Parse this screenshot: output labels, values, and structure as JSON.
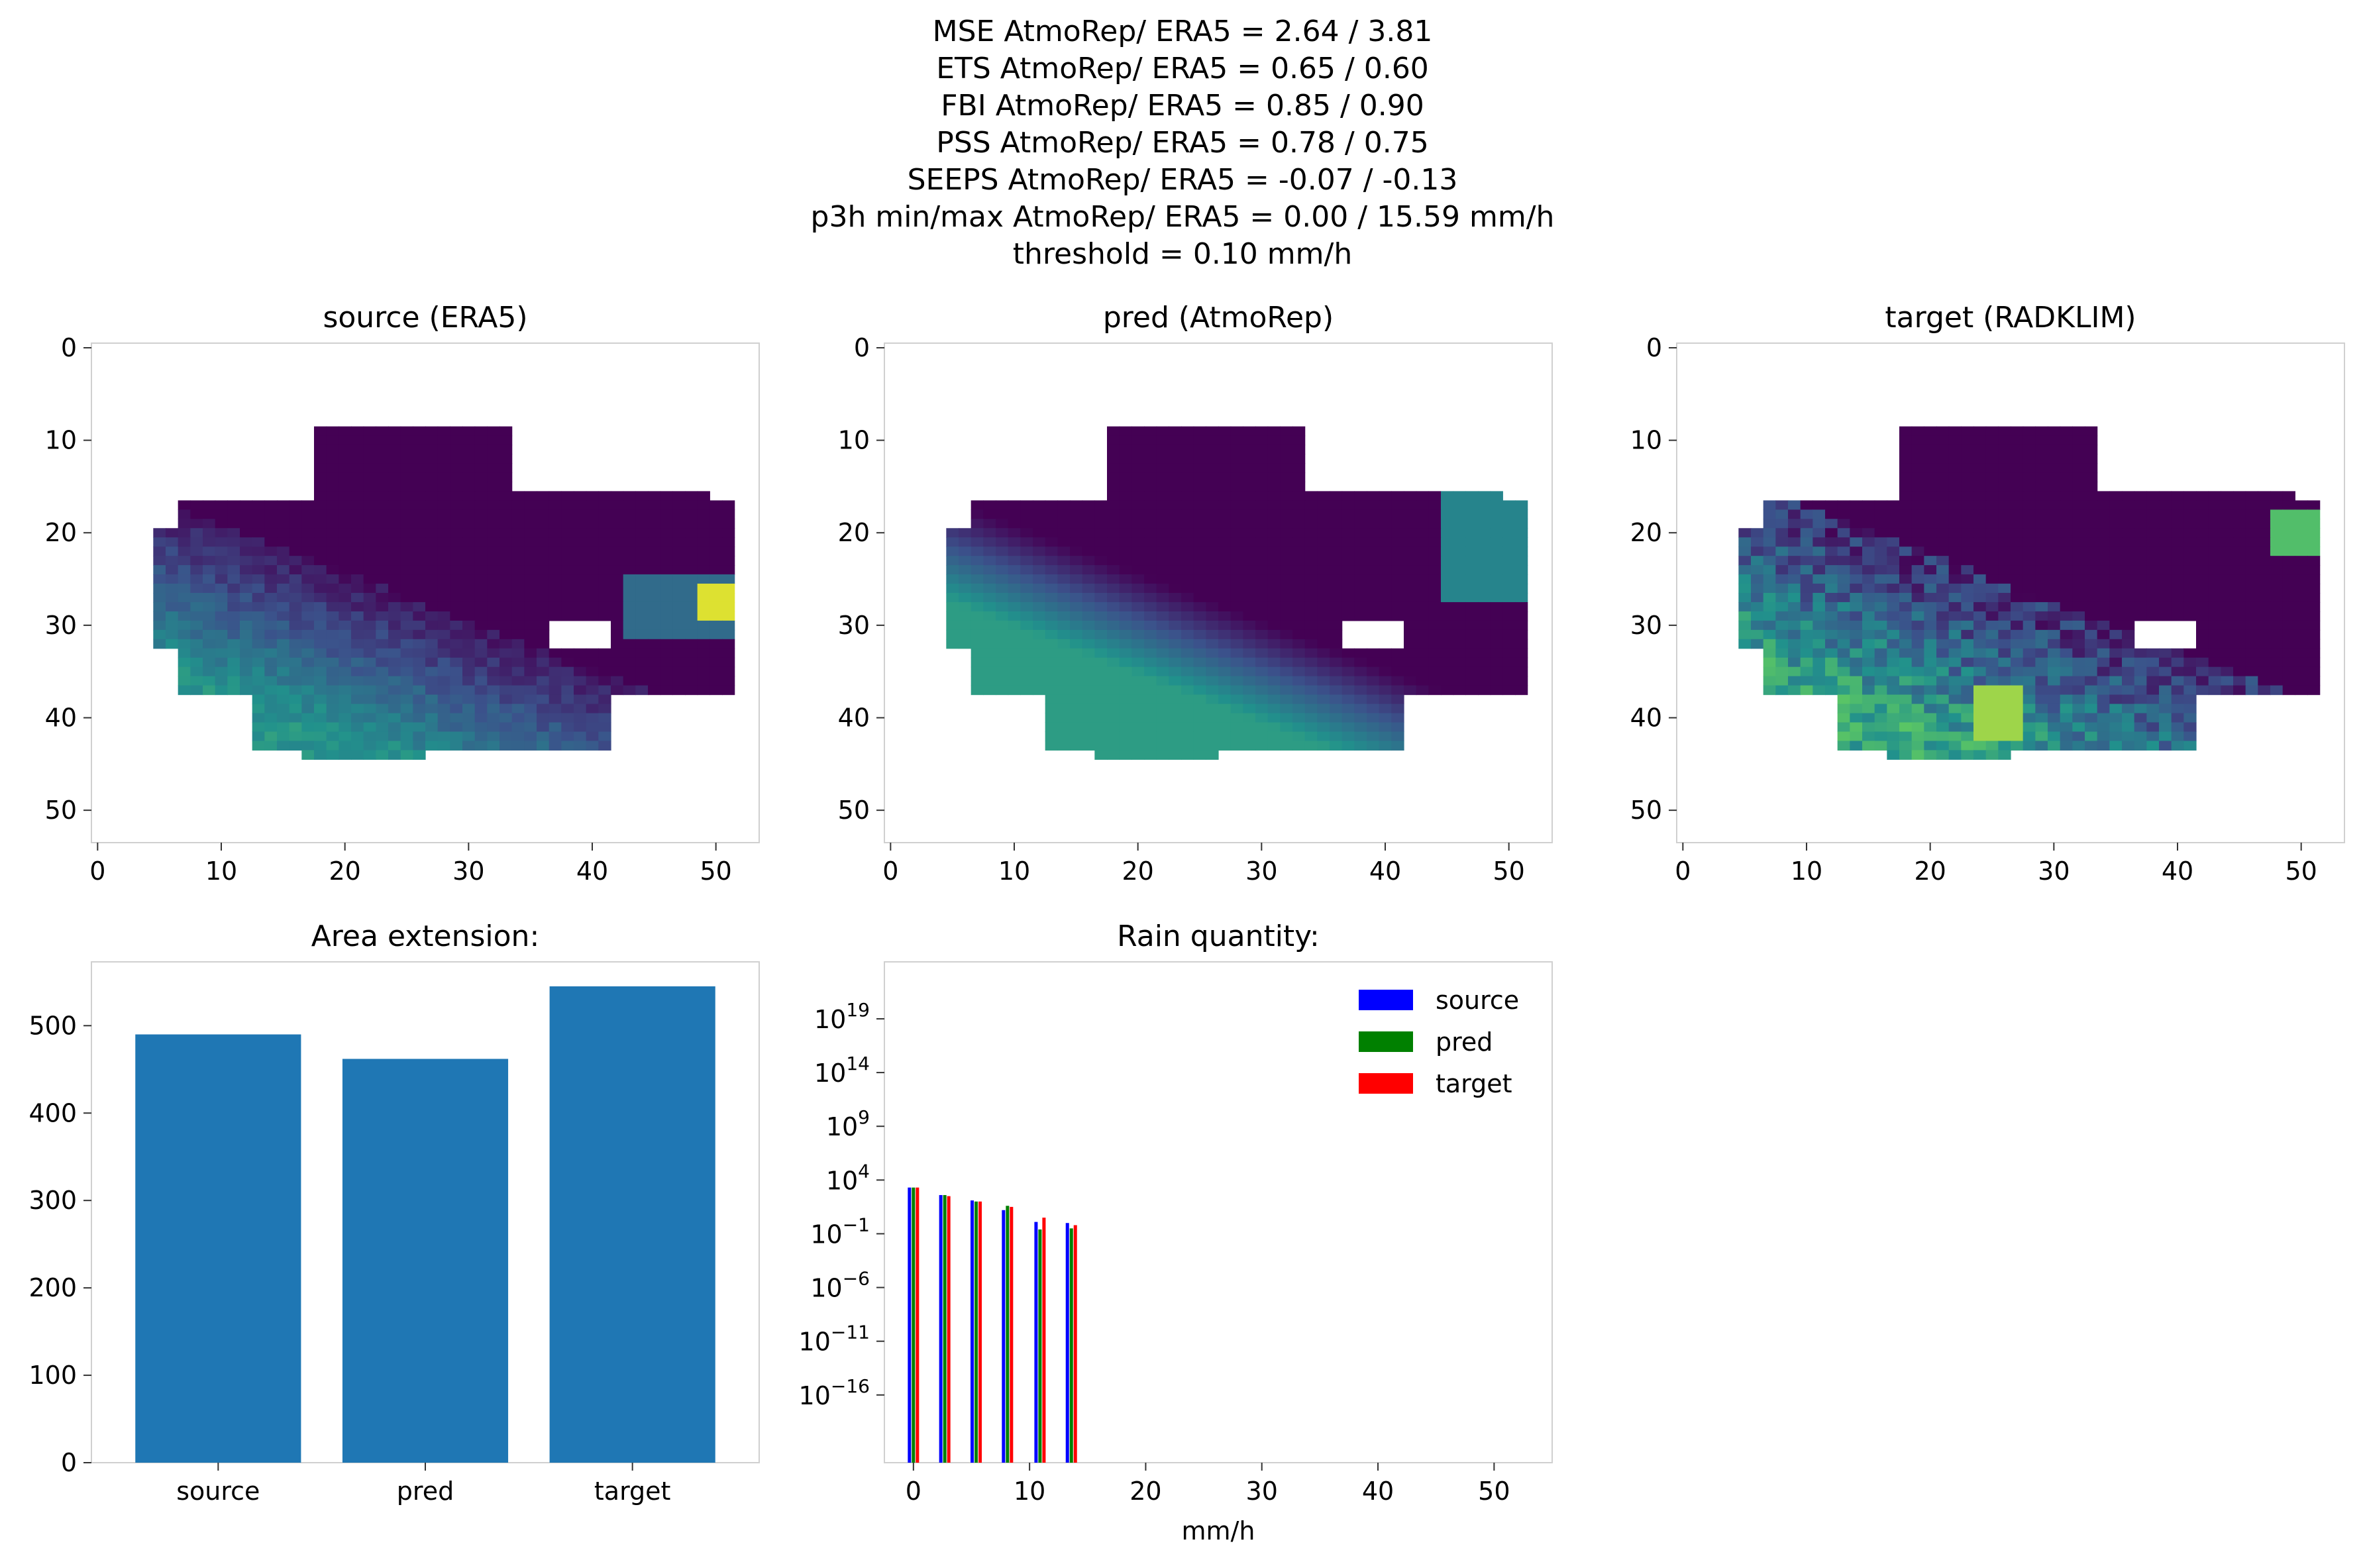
{
  "suptitle": [
    "MSE AtmoRep/ ERA5 = 2.64 / 3.81",
    "ETS AtmoRep/ ERA5 = 0.65 / 0.60",
    "FBI AtmoRep/ ERA5 = 0.85 / 0.90",
    "PSS AtmoRep/ ERA5 = 0.78 / 0.75",
    "SEEPS AtmoRep/ ERA5 = -0.07 / -0.13",
    "p3h min/max AtmoRep/ ERA5 = 0.00 / 15.59 mm/h",
    "threshold = 0.10 mm/h"
  ],
  "colors": {
    "bar": "#1f77b4",
    "source": "#0000ff",
    "pred": "#008000",
    "target": "#ff0000",
    "spine": "#d0d0d0",
    "viridis": [
      "#440154",
      "#3b528b",
      "#21918c",
      "#5ec962",
      "#fde725"
    ]
  },
  "chart_data": [
    {
      "type": "heatmap",
      "title": "source (ERA5)",
      "xticks": [
        "0",
        "10",
        "20",
        "30",
        "40",
        "50"
      ],
      "yticks": [
        "0",
        "10",
        "20",
        "30",
        "40",
        "50"
      ],
      "xlim": [
        -0.5,
        53.5
      ],
      "ylim": [
        53.5,
        -0.5
      ],
      "description_scale": "viridis"
    },
    {
      "type": "heatmap",
      "title": "pred (AtmoRep)",
      "xticks": [
        "0",
        "10",
        "20",
        "30",
        "40",
        "50"
      ],
      "yticks": [
        "0",
        "10",
        "20",
        "30",
        "40",
        "50"
      ],
      "xlim": [
        -0.5,
        53.5
      ],
      "ylim": [
        53.5,
        -0.5
      ],
      "description_scale": "viridis"
    },
    {
      "type": "heatmap",
      "title": "target (RADKLIM)",
      "xticks": [
        "0",
        "10",
        "20",
        "30",
        "40",
        "50"
      ],
      "yticks": [
        "0",
        "10",
        "20",
        "30",
        "40",
        "50"
      ],
      "xlim": [
        -0.5,
        53.5
      ],
      "ylim": [
        53.5,
        -0.5
      ],
      "description_scale": "viridis"
    },
    {
      "type": "bar",
      "title": "Area extension:",
      "categories": [
        "source",
        "pred",
        "target"
      ],
      "values": [
        490,
        462,
        545
      ],
      "yticks": [
        0,
        100,
        200,
        300,
        400,
        500
      ],
      "ylim": [
        0,
        573
      ]
    },
    {
      "type": "bar",
      "title": "Rain quantity:",
      "xlabel": "mm/h",
      "xticks": [
        0,
        10,
        20,
        30,
        40,
        50
      ],
      "xlim": [
        -2.5,
        55
      ],
      "ylog": true,
      "ylim_exp": [
        -22.3,
        24.3
      ],
      "yticks_exp": [
        19,
        14,
        9,
        4,
        -1,
        -6,
        -11,
        -16
      ],
      "legend": [
        "source",
        "pred",
        "target"
      ],
      "legend_position": "top-right",
      "bin_centers": [
        0,
        2.7,
        5.4,
        8.1,
        10.9,
        13.6
      ],
      "series": [
        {
          "name": "source",
          "values_log10": [
            3.3,
            2.6,
            2.1,
            1.2,
            0.1,
            0.0
          ]
        },
        {
          "name": "pred",
          "values_log10": [
            3.3,
            2.6,
            2.0,
            1.6,
            -0.6,
            -0.5
          ]
        },
        {
          "name": "target",
          "values_log10": [
            3.3,
            2.5,
            2.0,
            1.5,
            0.5,
            -0.2
          ]
        }
      ]
    }
  ]
}
